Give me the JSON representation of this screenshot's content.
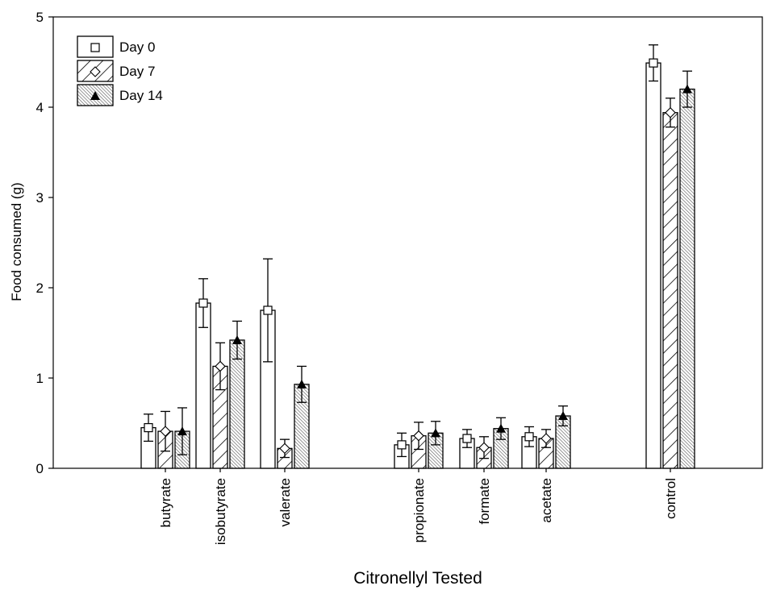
{
  "chart_data": {
    "type": "bar",
    "xlabel": "Citronellyl Tested",
    "ylabel": "Food consumed (g)",
    "ylim": [
      0,
      5
    ],
    "yticks": [
      0,
      1,
      2,
      3,
      4,
      5
    ],
    "grid": false,
    "legend_position": "top-left",
    "categories": [
      "butyrate",
      "isobutyrate",
      "valerate",
      "propionate",
      "formate",
      "acetate",
      "control"
    ],
    "series": [
      {
        "name": "Day 0",
        "values": [
          0.45,
          1.83,
          1.75,
          0.26,
          0.33,
          0.35,
          4.49
        ],
        "error": [
          0.15,
          0.27,
          0.57,
          0.13,
          0.1,
          0.11,
          0.2
        ]
      },
      {
        "name": "Day 7",
        "values": [
          0.41,
          1.13,
          0.22,
          0.36,
          0.23,
          0.33,
          3.94
        ],
        "error": [
          0.22,
          0.26,
          0.1,
          0.15,
          0.12,
          0.1,
          0.16
        ]
      },
      {
        "name": "Day 14",
        "values": [
          0.41,
          1.42,
          0.93,
          0.39,
          0.44,
          0.58,
          4.2
        ],
        "error": [
          0.26,
          0.21,
          0.2,
          0.13,
          0.12,
          0.11,
          0.2
        ]
      }
    ]
  }
}
